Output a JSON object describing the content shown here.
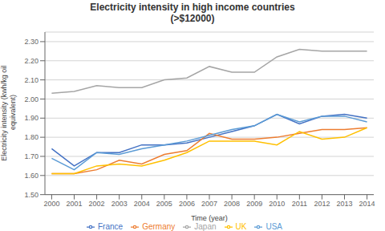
{
  "chart_data": {
    "type": "line",
    "title": "Electricity intensity in high income countries\n(>$12000)",
    "x_label": "Time (year)",
    "y_label": "Electricity intensity (kwh/kg oil\n equivalent)",
    "x": [
      2000,
      2001,
      2002,
      2003,
      2004,
      2005,
      2006,
      2007,
      2008,
      2009,
      2010,
      2011,
      2012,
      2013,
      2014
    ],
    "series": [
      {
        "name": "France",
        "color": "#4472C4",
        "values": [
          1.74,
          1.65,
          1.72,
          1.72,
          1.76,
          1.76,
          1.77,
          1.8,
          1.83,
          1.86,
          1.92,
          1.87,
          1.91,
          1.92,
          1.9
        ]
      },
      {
        "name": "Germany",
        "color": "#ED7D31",
        "values": [
          1.61,
          1.61,
          1.63,
          1.68,
          1.66,
          1.71,
          1.73,
          1.82,
          1.79,
          1.79,
          1.8,
          1.82,
          1.84,
          1.84,
          1.85
        ]
      },
      {
        "name": "Japan",
        "color": "#A5A5A5",
        "values": [
          2.03,
          2.04,
          2.07,
          2.06,
          2.06,
          2.1,
          2.11,
          2.17,
          2.14,
          2.14,
          2.22,
          2.26,
          2.25,
          2.25,
          2.25
        ]
      },
      {
        "name": "UK",
        "color": "#FFC000",
        "values": [
          1.61,
          1.61,
          1.65,
          1.66,
          1.65,
          1.68,
          1.72,
          1.78,
          1.78,
          1.78,
          1.76,
          1.83,
          1.79,
          1.8,
          1.85
        ]
      },
      {
        "name": "USA",
        "color": "#5B9BD5",
        "values": [
          1.69,
          1.63,
          1.72,
          1.71,
          1.74,
          1.76,
          1.78,
          1.81,
          1.84,
          1.86,
          1.92,
          1.88,
          1.91,
          1.91,
          1.88
        ]
      }
    ],
    "xlim": [
      1999.7,
      2014.3
    ],
    "xticks": [
      2000,
      2001,
      2002,
      2003,
      2004,
      2005,
      2006,
      2007,
      2008,
      2009,
      2010,
      2011,
      2012,
      2013,
      2014
    ],
    "ylim": [
      1.5,
      2.35
    ],
    "yticks": [
      {
        "value": 1.5,
        "label": "1.50"
      },
      {
        "value": 1.6,
        "label": "1.60"
      },
      {
        "value": 1.7,
        "label": "1.70"
      },
      {
        "value": 1.8,
        "label": "1.80"
      },
      {
        "value": 1.9,
        "label": "1.90"
      },
      {
        "value": 2.0,
        "label": "2.00"
      },
      {
        "value": 2.1,
        "label": "2.10"
      },
      {
        "value": 2.2,
        "label": "2.20"
      },
      {
        "value": 2.3,
        "label": "2.30"
      }
    ],
    "grid": true,
    "legend": "bottom"
  }
}
